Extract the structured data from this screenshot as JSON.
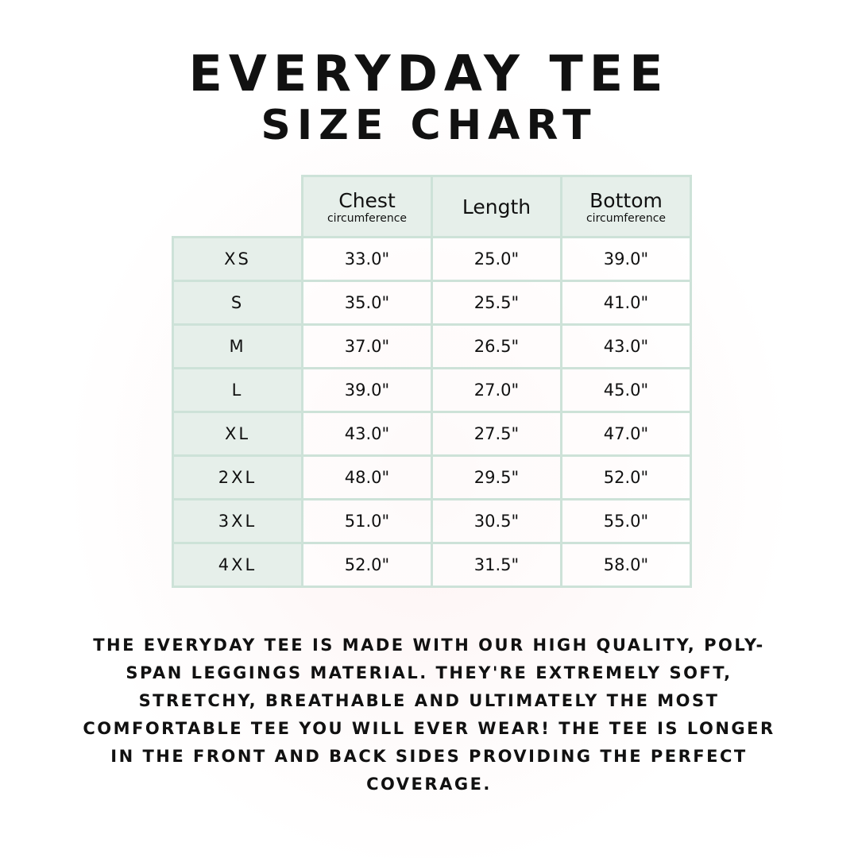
{
  "title": {
    "line1": "Everyday Tee",
    "line2": "Size Chart"
  },
  "colors": {
    "border": "#cde2d8",
    "header_bg": "#e6efea",
    "text": "#111111"
  },
  "table": {
    "columns": [
      {
        "label": "Chest",
        "sub": "circumference"
      },
      {
        "label": "Length",
        "sub": ""
      },
      {
        "label": "Bottom",
        "sub": "circumference"
      }
    ],
    "rows": [
      {
        "size": "XS",
        "chest": "33.0\"",
        "length": "25.0\"",
        "bottom": "39.0\""
      },
      {
        "size": "S",
        "chest": "35.0\"",
        "length": "25.5\"",
        "bottom": "41.0\""
      },
      {
        "size": "M",
        "chest": "37.0\"",
        "length": "26.5\"",
        "bottom": "43.0\""
      },
      {
        "size": "L",
        "chest": "39.0\"",
        "length": "27.0\"",
        "bottom": "45.0\""
      },
      {
        "size": "XL",
        "chest": "43.0\"",
        "length": "27.5\"",
        "bottom": "47.0\""
      },
      {
        "size": "2XL",
        "chest": "48.0\"",
        "length": "29.5\"",
        "bottom": "52.0\""
      },
      {
        "size": "3XL",
        "chest": "51.0\"",
        "length": "30.5\"",
        "bottom": "55.0\""
      },
      {
        "size": "4XL",
        "chest": "52.0\"",
        "length": "31.5\"",
        "bottom": "58.0\""
      }
    ]
  },
  "description": "The Everyday Tee is made with our high quality, poly-span leggings material. They're extremely soft, stretchy, breathable and ultimately the most comfortable tee you will ever wear! The tee is longer in the front and back sides providing the perfect coverage."
}
